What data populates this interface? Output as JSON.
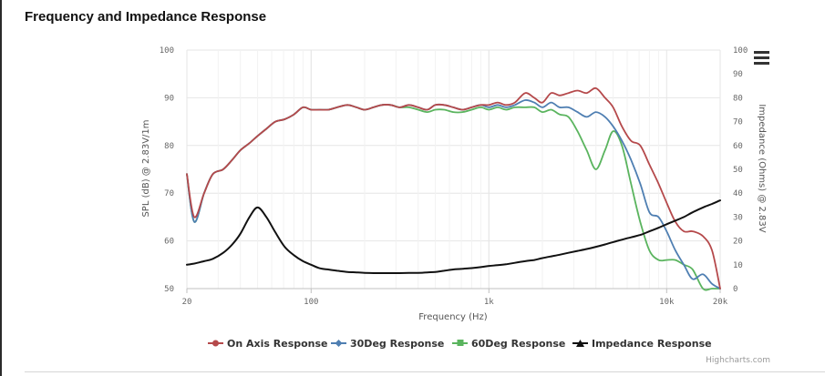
{
  "header": {
    "title": "Frequency and Impedance Response"
  },
  "menu": {
    "icon": "hamburger-menu-icon"
  },
  "credit": "Highcharts.com",
  "chart_data": {
    "type": "line",
    "title": "Frequency and Impedance Response",
    "xlabel": "Frequency (Hz)",
    "ylabel_left": "SPL (dB) @ 2.83V/1m",
    "ylabel_right": "Impedance (Ohms) @ 2.83V",
    "x_scale": "log",
    "xlim": [
      20,
      20000
    ],
    "x_ticks": [
      20,
      100,
      1000,
      10000,
      20000
    ],
    "x_tick_labels": [
      "20",
      "100",
      "1k",
      "10k",
      "20k"
    ],
    "ylim_left": [
      50,
      100
    ],
    "y_ticks_left": [
      50,
      60,
      70,
      80,
      90,
      100
    ],
    "ylim_right": [
      0,
      100
    ],
    "y_ticks_right": [
      0,
      10,
      20,
      30,
      40,
      50,
      60,
      70,
      80,
      90,
      100
    ],
    "grid": true,
    "legend_position": "bottom",
    "x": [
      20,
      22,
      25,
      28,
      32,
      36,
      40,
      45,
      50,
      56,
      63,
      71,
      80,
      90,
      100,
      112,
      125,
      140,
      160,
      180,
      200,
      224,
      250,
      280,
      315,
      355,
      400,
      450,
      500,
      560,
      630,
      710,
      800,
      900,
      1000,
      1120,
      1250,
      1400,
      1600,
      1800,
      2000,
      2240,
      2500,
      2800,
      3150,
      3550,
      4000,
      4500,
      5000,
      5600,
      6300,
      7100,
      8000,
      9000,
      10000,
      11200,
      12500,
      14000,
      16000,
      18000,
      20000
    ],
    "series": [
      {
        "name": "On Axis Response",
        "axis": "left",
        "color": "#b5494b",
        "marker": "circle",
        "values": [
          74,
          65,
          70,
          74,
          75,
          77,
          79,
          80.5,
          82,
          83.5,
          85,
          85.5,
          86.5,
          88,
          87.5,
          87.5,
          87.5,
          88,
          88.5,
          88,
          87.5,
          88,
          88.5,
          88.5,
          88,
          88.5,
          88,
          87.5,
          88.5,
          88.5,
          88,
          87.5,
          88,
          88.5,
          88.5,
          89,
          88.5,
          89,
          91,
          90,
          89,
          91,
          90.5,
          91,
          91.5,
          91,
          92,
          90,
          88,
          84,
          81,
          80,
          76,
          72,
          68,
          64,
          62,
          62,
          61,
          58,
          50
        ]
      },
      {
        "name": "30Deg Response",
        "axis": "left",
        "color": "#4f7fb2",
        "marker": "diamond",
        "values": [
          74,
          64,
          70,
          74,
          75,
          77,
          79,
          80.5,
          82,
          83.5,
          85,
          85.5,
          86.5,
          88,
          87.5,
          87.5,
          87.5,
          88,
          88.5,
          88,
          87.5,
          88,
          88.5,
          88.5,
          88,
          88.5,
          88,
          87.5,
          88.5,
          88.5,
          88,
          87.5,
          88,
          88.5,
          88,
          88.5,
          88,
          88.5,
          89.5,
          89,
          88,
          89,
          88,
          88,
          87,
          86,
          87,
          86,
          84,
          81,
          77,
          72,
          66,
          65,
          62,
          58,
          55,
          52,
          53,
          51,
          50
        ]
      },
      {
        "name": "60Deg Response",
        "axis": "left",
        "color": "#5ab45e",
        "marker": "square",
        "values": [
          74,
          64,
          70,
          74,
          75,
          77,
          79,
          80.5,
          82,
          83.5,
          85,
          85.5,
          86.5,
          88,
          87.5,
          87.5,
          87.5,
          88,
          88.5,
          88,
          87.5,
          88,
          88.5,
          88.5,
          88,
          88,
          87.5,
          87,
          87.5,
          87.5,
          87,
          87,
          87.5,
          88,
          87.5,
          88,
          87.5,
          88,
          88,
          88,
          87,
          87.5,
          86.5,
          86,
          83,
          79,
          75,
          79,
          83,
          80,
          72,
          64,
          58,
          56,
          56,
          56,
          55,
          54,
          50,
          50,
          50
        ]
      },
      {
        "name": "Impedance Response",
        "axis": "right",
        "color": "#111111",
        "marker": "triangle",
        "values": [
          10,
          10.5,
          11.5,
          12.5,
          15,
          18.5,
          23,
          30,
          34,
          30,
          23.5,
          17.5,
          14,
          11.5,
          10,
          8.5,
          8,
          7.5,
          7,
          6.8,
          6.6,
          6.5,
          6.5,
          6.5,
          6.5,
          6.6,
          6.6,
          6.8,
          7,
          7.5,
          8,
          8.3,
          8.6,
          9,
          9.5,
          9.8,
          10.2,
          10.8,
          11.5,
          12,
          12.8,
          13.5,
          14.2,
          15,
          15.8,
          16.6,
          17.5,
          18.5,
          19.5,
          20.5,
          21.5,
          22.5,
          24,
          25.5,
          27,
          28.5,
          30,
          32,
          34,
          35.5,
          37
        ]
      }
    ]
  }
}
